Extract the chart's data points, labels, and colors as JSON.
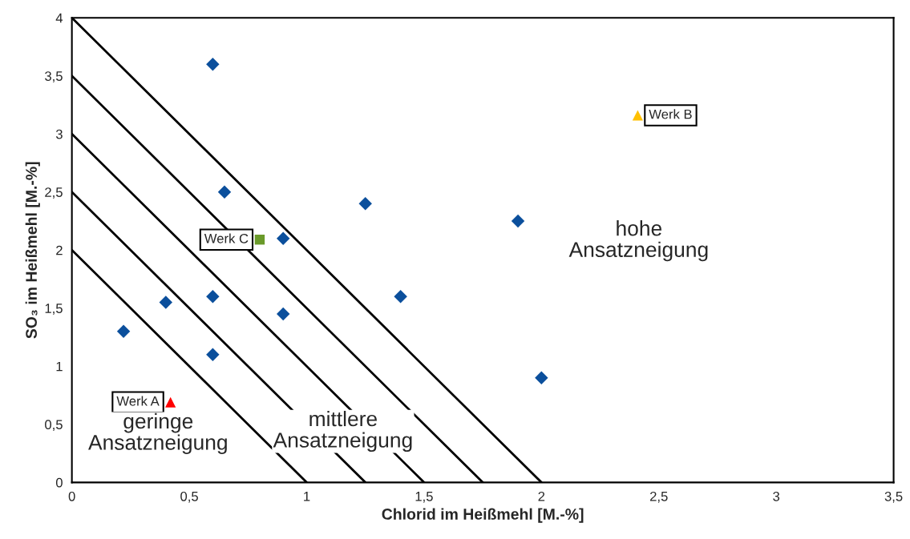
{
  "chart_data": {
    "type": "scatter",
    "xlabel": "Chlorid im Heißmehl [M.-%]",
    "ylabel": "SO₃ im Heißmehl [M.-%]",
    "xlim": [
      0,
      3.5
    ],
    "ylim": [
      0,
      4
    ],
    "xticks": [
      0,
      {
        "value": 0.5,
        "label": "0,5"
      },
      1,
      {
        "value": 1.5,
        "label": "1,5"
      },
      2,
      {
        "value": 2.5,
        "label": "2,5"
      },
      3,
      {
        "value": 3.5,
        "label": "3,5"
      }
    ],
    "yticks": [
      0,
      {
        "value": 0.5,
        "label": "0,5"
      },
      1,
      {
        "value": 1.5,
        "label": "1,5"
      },
      2,
      {
        "value": 2.5,
        "label": "2,5"
      },
      3,
      {
        "value": 3.5,
        "label": "3,5"
      },
      4
    ],
    "grid": false,
    "legend": false,
    "series": [
      {
        "type": "line",
        "color": "#000000",
        "x": [
          0,
          1
        ],
        "values": [
          2,
          0
        ]
      },
      {
        "type": "line",
        "color": "#000000",
        "x": [
          0,
          1.25
        ],
        "values": [
          2.5,
          0
        ]
      },
      {
        "type": "line",
        "color": "#000000",
        "x": [
          0,
          1.5
        ],
        "values": [
          3,
          0
        ]
      },
      {
        "type": "line",
        "color": "#000000",
        "x": [
          0,
          1.75
        ],
        "values": [
          3.5,
          0
        ]
      },
      {
        "type": "line",
        "color": "#000000",
        "x": [
          0,
          2
        ],
        "values": [
          4,
          0
        ]
      },
      {
        "marker": "diamond",
        "color": "#0b4f9c",
        "x": [
          0.6,
          0.65,
          1.25,
          0.9,
          1.9,
          1.4,
          0.6,
          0.4,
          0.22,
          0.9,
          0.6,
          2.0
        ],
        "values": [
          3.6,
          2.5,
          2.4,
          2.1,
          2.25,
          1.6,
          1.6,
          1.55,
          1.3,
          1.45,
          1.1,
          0.9
        ]
      },
      {
        "name": "Werk A",
        "marker": "triangle",
        "color": "#ff0000",
        "x": [
          0.42
        ],
        "values": [
          0.69
        ]
      },
      {
        "name": "Werk B",
        "marker": "triangle",
        "color": "#ffc000",
        "x": [
          2.41
        ],
        "values": [
          3.16
        ]
      },
      {
        "name": "Werk C",
        "marker": "square",
        "color": "#6a9a2a",
        "x": [
          0.8
        ],
        "values": [
          2.09
        ]
      }
    ],
    "annotations": [
      "geringe\nAnsatzneigung",
      "mittlere\nAnsatzneigung",
      "hohe\nAnsatzneigung"
    ]
  }
}
